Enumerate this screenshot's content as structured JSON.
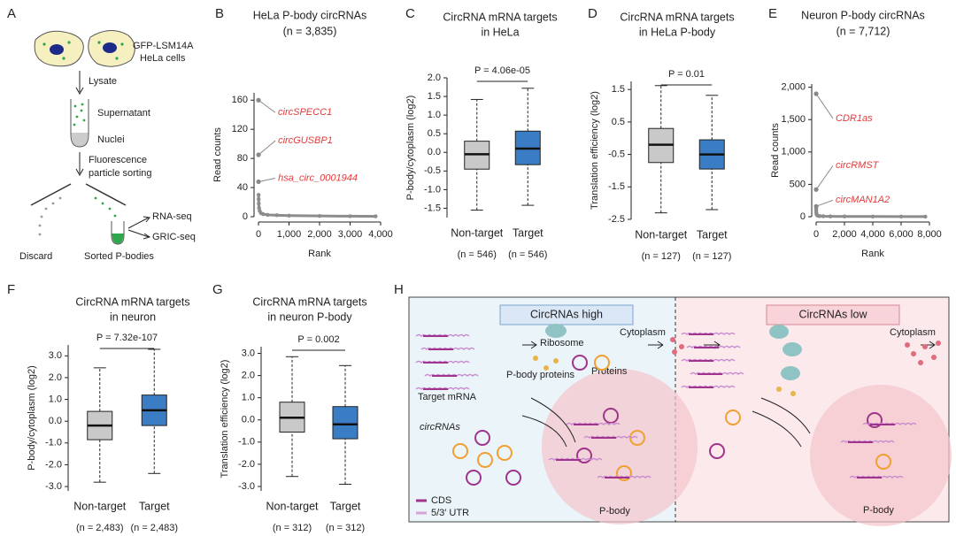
{
  "panel_labels": [
    "A",
    "B",
    "C",
    "D",
    "E",
    "F",
    "G",
    "H"
  ],
  "workflow": {
    "cells": "GFP-LSM14A",
    "cells_line2": "HeLa cells",
    "step1": "Lysate",
    "supernatant": "Supernatant",
    "nuclei": "Nuclei",
    "step2": "Fluorescence",
    "step2_line2": "particle sorting",
    "rna_seq": "RNA-seq",
    "gric_seq": "GRIC-seq",
    "discard": "Discard",
    "sorted": "Sorted P-bodies"
  },
  "chart_data": [
    {
      "type": "scatter",
      "title": "HeLa P-body circRNAs",
      "subtitle": "(n = 3,835)",
      "x_label": "Rank",
      "y_label": "Read counts",
      "xlim": [
        0,
        4000
      ],
      "xticks": [
        0,
        {
          "value": 1000,
          "label": "1,000"
        },
        {
          "value": 2000,
          "label": "2,000"
        },
        {
          "value": 3000,
          "label": "3,000"
        },
        {
          "value": 4000,
          "label": "4,000"
        }
      ],
      "ylim": [
        0,
        170
      ],
      "yticks": [
        0,
        40,
        80,
        120,
        160
      ],
      "color": "#8c8c8c",
      "x": [
        4,
        6,
        10,
        20,
        40,
        80,
        150,
        300,
        600,
        1000,
        2000,
        3000,
        3835
      ],
      "values": [
        30,
        24,
        18,
        12,
        8,
        5,
        3.5,
        2.5,
        2,
        1.5,
        1,
        0.7,
        0.5
      ],
      "highlights": {
        "x": [
          1,
          2,
          3
        ],
        "values": [
          160,
          85,
          48
        ],
        "labels": [
          "circSPECC1",
          "circGUSBP1",
          "hsa_circ_0001944"
        ],
        "color": "#e03c3c"
      }
    },
    {
      "type": "box",
      "title": [
        "CircRNA mRNA targets",
        "in HeLa"
      ],
      "y_label": "P-body/cytoplasm (log2)",
      "categories": [
        "Non-target",
        "Target"
      ],
      "n_labels": [
        "(n = 546)",
        "(n = 546)"
      ],
      "colors": [
        "#c9c9c9",
        "#3b7dc4"
      ],
      "whisker_low": [
        -1.55,
        -1.42
      ],
      "q1": [
        -0.45,
        -0.33
      ],
      "median": [
        -0.05,
        0.1
      ],
      "q3": [
        0.3,
        0.57
      ],
      "whisker_high": [
        1.42,
        1.72
      ],
      "p_value": "P = 4.06e-05",
      "ylim": [
        -1.75,
        2.0
      ],
      "yticks": [
        -1.5,
        {
          "value": -1,
          "label": "-1.0"
        },
        -0.5,
        {
          "value": 0,
          "label": "0.0"
        },
        0.5,
        {
          "value": 1,
          "label": "1.0"
        },
        1.5,
        {
          "value": 2,
          "label": "2.0"
        }
      ]
    },
    {
      "type": "box",
      "title": [
        "CircRNA mRNA targets",
        "in HeLa P-body"
      ],
      "y_label": "Translation efficiency (log2)",
      "categories": [
        "Non-target",
        "Target"
      ],
      "n_labels": [
        "(n = 127)",
        "(n = 127)"
      ],
      "colors": [
        "#c9c9c9",
        "#3b7dc4"
      ],
      "whisker_low": [
        -2.3,
        -2.2
      ],
      "q1": [
        -0.75,
        -0.95
      ],
      "median": [
        -0.2,
        -0.5
      ],
      "q3": [
        0.3,
        -0.05
      ],
      "whisker_high": [
        1.62,
        1.32
      ],
      "p_value": "P = 0.01",
      "ylim": [
        -2.5,
        1.75
      ],
      "yticks": [
        -2.5,
        -1.5,
        -0.5,
        0.5,
        1.5
      ]
    },
    {
      "type": "scatter",
      "title": "Neuron P-body circRNAs",
      "subtitle": "(n = 7,712)",
      "x_label": "Rank",
      "y_label": "Read counts",
      "xlim": [
        0,
        8000
      ],
      "xticks": [
        0,
        {
          "value": 2000,
          "label": "2,000"
        },
        {
          "value": 4000,
          "label": "4,000"
        },
        {
          "value": 6000,
          "label": "6,000"
        },
        {
          "value": 8000,
          "label": "8,000"
        }
      ],
      "ylim": [
        0,
        2050
      ],
      "yticks": [
        0,
        500,
        {
          "value": 1000,
          "label": "1,000"
        },
        {
          "value": 1500,
          "label": "1,500"
        },
        {
          "value": 2000,
          "label": "2,000"
        }
      ],
      "color": "#8c8c8c",
      "x": [
        4,
        8,
        15,
        30,
        60,
        120,
        250,
        500,
        1000,
        2000,
        4000,
        6000,
        7712
      ],
      "values": [
        120,
        90,
        60,
        40,
        25,
        15,
        10,
        7,
        5,
        4,
        3,
        2,
        1
      ],
      "highlights": {
        "x": [
          1,
          2,
          3
        ],
        "values": [
          1900,
          420,
          160
        ],
        "labels": [
          "CDR1as",
          "circRMST",
          "circMAN1A2"
        ],
        "color": "#e03c3c"
      }
    },
    {
      "type": "box",
      "title": [
        "CircRNA mRNA targets",
        "in neuron"
      ],
      "y_label": "P-body/cytoplasm (log2)",
      "categories": [
        "Non-target",
        "Target"
      ],
      "n_labels": [
        "(n = 2,483)",
        "(n = 2,483)"
      ],
      "colors": [
        "#c9c9c9",
        "#3b7dc4"
      ],
      "whisker_low": [
        -2.8,
        -2.4
      ],
      "q1": [
        -0.85,
        -0.2
      ],
      "median": [
        -0.2,
        0.5
      ],
      "q3": [
        0.45,
        1.2
      ],
      "whisker_high": [
        2.45,
        3.3
      ],
      "p_value": "P = 7.32e-107",
      "ylim": [
        -3.2,
        3.5
      ],
      "yticks": [
        {
          "value": -3,
          "label": "-3.0"
        },
        {
          "value": -2,
          "label": "-2.0"
        },
        {
          "value": -1,
          "label": "-1.0"
        },
        {
          "value": 0,
          "label": "0.0"
        },
        {
          "value": 1,
          "label": "1.0"
        },
        {
          "value": 2,
          "label": "2.0"
        },
        {
          "value": 3,
          "label": "3.0"
        }
      ]
    },
    {
      "type": "box",
      "title": [
        "CircRNA mRNA targets",
        "in neuron P-body"
      ],
      "y_label": "Translation efficiency (log2)",
      "categories": [
        "Non-target",
        "Target"
      ],
      "n_labels": [
        "(n = 312)",
        "(n = 312)"
      ],
      "colors": [
        "#c9c9c9",
        "#3b7dc4"
      ],
      "whisker_low": [
        -2.55,
        -2.9
      ],
      "q1": [
        -0.55,
        -0.85
      ],
      "median": [
        0.1,
        -0.2
      ],
      "q3": [
        0.8,
        0.6
      ],
      "whisker_high": [
        2.85,
        2.45
      ],
      "p_value": "P = 0.002",
      "ylim": [
        -3.2,
        3.3
      ],
      "yticks": [
        {
          "value": -3,
          "label": "-3.0"
        },
        {
          "value": -2,
          "label": "-2.0"
        },
        {
          "value": -1,
          "label": "-1.0"
        },
        {
          "value": 0,
          "label": "0.0"
        },
        {
          "value": 1,
          "label": "1.0"
        },
        {
          "value": 2,
          "label": "2.0"
        },
        {
          "value": 3,
          "label": "3.0"
        }
      ]
    }
  ],
  "model": {
    "left_title": "CircRNAs high",
    "right_title": "CircRNAs low",
    "cytoplasm": "Cytoplasm",
    "ribosome": "Ribosome",
    "proteins": "Proteins",
    "target_mrna": "Target mRNA",
    "pbody_proteins": "P-body proteins",
    "circrnas": "circRNAs",
    "legend": [
      "CDS",
      "5/3′ UTR"
    ],
    "pbody": "P-body"
  }
}
